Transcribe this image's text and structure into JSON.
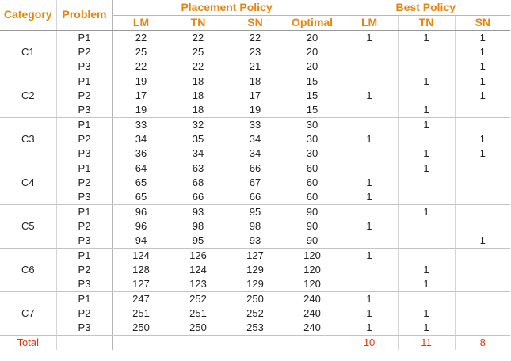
{
  "table": {
    "headers": {
      "category": "Category",
      "problem": "Problem",
      "placement_policy": "Placement Policy",
      "best_policy": "Best Policy",
      "placement_cols": [
        "LM",
        "TN",
        "SN",
        "Optimal"
      ],
      "best_cols": [
        "LM",
        "TN",
        "SN"
      ]
    },
    "categories": [
      {
        "name": "C1",
        "rows": [
          {
            "problem": "P1",
            "lm": "22",
            "tn": "22",
            "sn": "22",
            "optimal": "20",
            "best_lm": "1",
            "best_tn": "1",
            "best_sn": "1"
          },
          {
            "problem": "P2",
            "lm": "25",
            "tn": "25",
            "sn": "23",
            "optimal": "20",
            "best_lm": "",
            "best_tn": "",
            "best_sn": "1"
          },
          {
            "problem": "P3",
            "lm": "22",
            "tn": "22",
            "sn": "21",
            "optimal": "20",
            "best_lm": "",
            "best_tn": "",
            "best_sn": "1"
          }
        ]
      },
      {
        "name": "C2",
        "rows": [
          {
            "problem": "P1",
            "lm": "19",
            "tn": "18",
            "sn": "18",
            "optimal": "15",
            "best_lm": "",
            "best_tn": "1",
            "best_sn": "1"
          },
          {
            "problem": "P2",
            "lm": "17",
            "tn": "18",
            "sn": "17",
            "optimal": "15",
            "best_lm": "1",
            "best_tn": "",
            "best_sn": "1"
          },
          {
            "problem": "P3",
            "lm": "19",
            "tn": "18",
            "sn": "19",
            "optimal": "15",
            "best_lm": "",
            "best_tn": "1",
            "best_sn": ""
          }
        ]
      },
      {
        "name": "C3",
        "rows": [
          {
            "problem": "P1",
            "lm": "33",
            "tn": "32",
            "sn": "33",
            "optimal": "30",
            "best_lm": "",
            "best_tn": "1",
            "best_sn": ""
          },
          {
            "problem": "P2",
            "lm": "34",
            "tn": "35",
            "sn": "34",
            "optimal": "30",
            "best_lm": "1",
            "best_tn": "",
            "best_sn": "1"
          },
          {
            "problem": "P3",
            "lm": "36",
            "tn": "34",
            "sn": "34",
            "optimal": "30",
            "best_lm": "",
            "best_tn": "1",
            "best_sn": "1"
          }
        ]
      },
      {
        "name": "C4",
        "rows": [
          {
            "problem": "P1",
            "lm": "64",
            "tn": "63",
            "sn": "66",
            "optimal": "60",
            "best_lm": "",
            "best_tn": "1",
            "best_sn": ""
          },
          {
            "problem": "P2",
            "lm": "65",
            "tn": "68",
            "sn": "67",
            "optimal": "60",
            "best_lm": "1",
            "best_tn": "",
            "best_sn": ""
          },
          {
            "problem": "P3",
            "lm": "65",
            "tn": "66",
            "sn": "66",
            "optimal": "60",
            "best_lm": "1",
            "best_tn": "",
            "best_sn": ""
          }
        ]
      },
      {
        "name": "C5",
        "rows": [
          {
            "problem": "P1",
            "lm": "96",
            "tn": "93",
            "sn": "95",
            "optimal": "90",
            "best_lm": "",
            "best_tn": "1",
            "best_sn": ""
          },
          {
            "problem": "P2",
            "lm": "96",
            "tn": "98",
            "sn": "98",
            "optimal": "90",
            "best_lm": "1",
            "best_tn": "",
            "best_sn": ""
          },
          {
            "problem": "P3",
            "lm": "94",
            "tn": "95",
            "sn": "93",
            "optimal": "90",
            "best_lm": "",
            "best_tn": "",
            "best_sn": "1"
          }
        ]
      },
      {
        "name": "C6",
        "rows": [
          {
            "problem": "P1",
            "lm": "124",
            "tn": "126",
            "sn": "127",
            "optimal": "120",
            "best_lm": "1",
            "best_tn": "",
            "best_sn": ""
          },
          {
            "problem": "P2",
            "lm": "128",
            "tn": "124",
            "sn": "129",
            "optimal": "120",
            "best_lm": "",
            "best_tn": "1",
            "best_sn": ""
          },
          {
            "problem": "P3",
            "lm": "127",
            "tn": "123",
            "sn": "129",
            "optimal": "120",
            "best_lm": "",
            "best_tn": "1",
            "best_sn": ""
          }
        ]
      },
      {
        "name": "C7",
        "rows": [
          {
            "problem": "P1",
            "lm": "247",
            "tn": "252",
            "sn": "250",
            "optimal": "240",
            "best_lm": "1",
            "best_tn": "",
            "best_sn": ""
          },
          {
            "problem": "P2",
            "lm": "251",
            "tn": "251",
            "sn": "252",
            "optimal": "240",
            "best_lm": "1",
            "best_tn": "1",
            "best_sn": ""
          },
          {
            "problem": "P3",
            "lm": "250",
            "tn": "250",
            "sn": "253",
            "optimal": "240",
            "best_lm": "1",
            "best_tn": "1",
            "best_sn": ""
          }
        ]
      }
    ],
    "total": {
      "label": "Total",
      "best_lm": "10",
      "best_tn": "11",
      "best_sn": "8"
    }
  },
  "colors": {
    "header_accent": "#e8830c",
    "total_accent": "#e8320c",
    "text": "#222222"
  }
}
